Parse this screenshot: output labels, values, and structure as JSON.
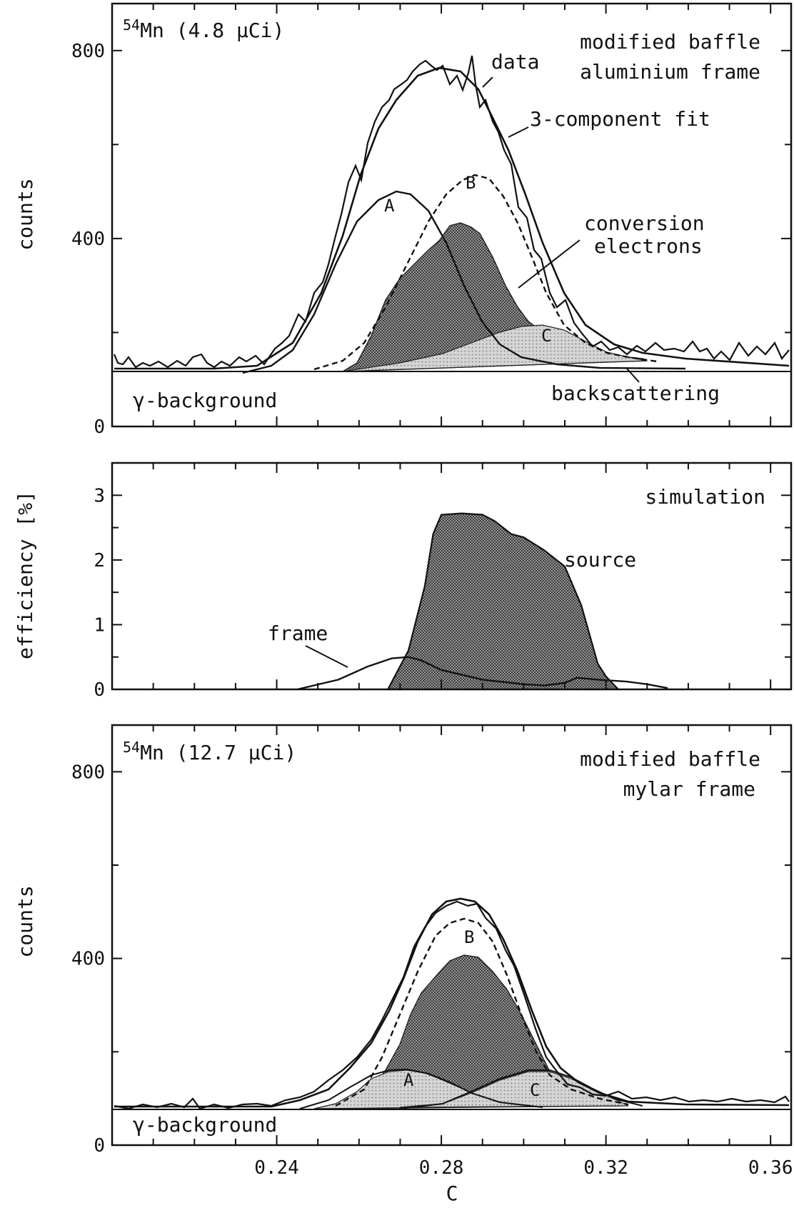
{
  "chart_data": [
    {
      "type": "line",
      "panel": "top",
      "ylabel": "counts",
      "xlim": [
        0.2,
        0.365
      ],
      "ylim": [
        0,
        900
      ],
      "x_ticks": [],
      "y_ticks": [
        0,
        400,
        800
      ],
      "grid": false,
      "title_left": {
        "sup": "54",
        "main": "Mn (4.8 µCi)"
      },
      "annotations": {
        "line1": "modified baffle",
        "line2": "aluminium frame",
        "data": "data",
        "fit": "3-component fit",
        "conversion1": "conversion",
        "conversion2": "electrons",
        "backscattering": "backscattering",
        "background": "γ-background",
        "A": "A",
        "B": "B",
        "C": "C"
      },
      "series": [
        {
          "x": [
            0.2,
            0.21,
            0.22,
            0.23,
            0.24,
            0.245,
            0.25,
            0.255,
            0.26,
            0.265,
            0.27,
            0.275,
            0.28,
            0.285,
            0.29,
            0.295,
            0.3,
            0.305,
            0.31,
            0.315,
            0.32,
            0.325,
            0.33,
            0.34,
            0.35,
            0.365
          ],
          "y": [
            135,
            130,
            133,
            128,
            140,
            160,
            210,
            300,
            420,
            550,
            680,
            760,
            780,
            770,
            740,
            620,
            520,
            400,
            290,
            220,
            185,
            165,
            155,
            150,
            145,
            140
          ]
        },
        {
          "x": [
            0.2,
            0.23,
            0.24,
            0.245,
            0.25,
            0.255,
            0.26,
            0.265,
            0.27,
            0.275,
            0.28,
            0.285,
            0.29,
            0.295,
            0.3,
            0.305,
            0.31,
            0.315,
            0.32,
            0.325,
            0.33,
            0.34,
            0.365
          ],
          "y": [
            130,
            130,
            140,
            165,
            220,
            320,
            450,
            590,
            700,
            760,
            775,
            755,
            700,
            600,
            480,
            370,
            285,
            225,
            190,
            170,
            158,
            148,
            140
          ]
        },
        {
          "x": [
            0.2,
            0.23,
            0.24,
            0.25,
            0.26,
            0.265,
            0.27,
            0.275,
            0.28,
            0.285,
            0.29,
            0.3,
            0.31,
            0.32,
            0.33,
            0.365
          ],
          "y": [
            130,
            130,
            145,
            220,
            390,
            470,
            510,
            490,
            420,
            330,
            250,
            170,
            145,
            135,
            131,
            130
          ]
        },
        {
          "x": [
            0.2,
            0.24,
            0.25,
            0.26,
            0.27,
            0.275,
            0.28,
            0.285,
            0.29,
            0.295,
            0.3,
            0.305,
            0.31,
            0.315,
            0.32,
            0.33,
            0.365
          ],
          "y": [
            130,
            130,
            140,
            180,
            300,
            400,
            480,
            540,
            560,
            545,
            480,
            380,
            280,
            210,
            170,
            140,
            130
          ]
        },
        {
          "x": [
            0.2,
            0.25,
            0.26,
            0.265,
            0.27,
            0.275,
            0.28,
            0.285,
            0.29,
            0.295,
            0.3,
            0.305,
            0.31,
            0.315,
            0.32,
            0.325,
            0.33,
            0.365
          ],
          "y": [
            130,
            130,
            135,
            150,
            200,
            260,
            330,
            390,
            435,
            420,
            360,
            280,
            215,
            180,
            160,
            150,
            142,
            135
          ]
        },
        {
          "x": [
            0.2,
            0.27,
            0.28,
            0.29,
            0.3,
            0.305,
            0.31,
            0.315,
            0.32,
            0.33,
            0.34,
            0.365
          ],
          "y": [
            130,
            132,
            150,
            175,
            200,
            212,
            215,
            205,
            185,
            155,
            140,
            133
          ]
        },
        {
          "x": [
            0.2,
            0.365
          ],
          "y": [
            130,
            130
          ]
        }
      ]
    },
    {
      "type": "area",
      "panel": "middle",
      "ylabel": "efficiency [%]",
      "xlim": [
        0.2,
        0.365
      ],
      "ylim": [
        0,
        3.5
      ],
      "x_ticks": [],
      "y_ticks": [
        0,
        1,
        2,
        3
      ],
      "grid": false,
      "annotations": {
        "simulation": "simulation",
        "source": "source",
        "frame": "frame"
      },
      "series": [
        {
          "x": [
            0.267,
            0.272,
            0.276,
            0.278,
            0.28,
            0.285,
            0.29,
            0.293,
            0.297,
            0.3,
            0.305,
            0.31,
            0.314,
            0.318,
            0.32,
            0.323
          ],
          "y": [
            0.0,
            0.6,
            1.6,
            2.4,
            2.7,
            2.72,
            2.7,
            2.6,
            2.4,
            2.35,
            2.15,
            1.9,
            1.3,
            0.4,
            0.2,
            0.0
          ]
        },
        {
          "x": [
            0.245,
            0.255,
            0.262,
            0.268,
            0.272,
            0.275,
            0.28,
            0.29,
            0.3,
            0.305,
            0.31,
            0.313,
            0.318,
            0.325,
            0.33,
            0.335
          ],
          "y": [
            0.0,
            0.15,
            0.35,
            0.48,
            0.5,
            0.45,
            0.3,
            0.15,
            0.08,
            0.06,
            0.1,
            0.18,
            0.15,
            0.12,
            0.08,
            0.02
          ]
        }
      ]
    },
    {
      "type": "line",
      "panel": "bottom",
      "ylabel": "counts",
      "xlabel": "C",
      "xlim": [
        0.2,
        0.365
      ],
      "ylim": [
        0,
        900
      ],
      "x_ticks": [
        0.24,
        0.28,
        0.32,
        0.36
      ],
      "y_ticks": [
        0,
        400,
        800
      ],
      "grid": false,
      "title_left": {
        "sup": "54",
        "main": "Mn (12.7 µCi)"
      },
      "annotations": {
        "line1": "modified baffle",
        "line2": "mylar frame",
        "background": "γ-background",
        "A": "A",
        "B": "B",
        "C": "C"
      },
      "series": [
        {
          "x": [
            0.2,
            0.22,
            0.24,
            0.25,
            0.255,
            0.26,
            0.265,
            0.27,
            0.275,
            0.28,
            0.285,
            0.29,
            0.295,
            0.3,
            0.305,
            0.31,
            0.315,
            0.32,
            0.33,
            0.34,
            0.365
          ],
          "y": [
            80,
            78,
            82,
            95,
            120,
            170,
            250,
            350,
            440,
            500,
            520,
            525,
            500,
            430,
            330,
            230,
            160,
            120,
            95,
            88,
            85
          ]
        },
        {
          "x": [
            0.2,
            0.24,
            0.25,
            0.255,
            0.26,
            0.265,
            0.27,
            0.275,
            0.28,
            0.285,
            0.29,
            0.295,
            0.3,
            0.305,
            0.31,
            0.315,
            0.32,
            0.33,
            0.365
          ],
          "y": [
            80,
            82,
            95,
            120,
            175,
            260,
            360,
            450,
            510,
            535,
            540,
            515,
            440,
            340,
            240,
            165,
            125,
            95,
            82
          ]
        },
        {
          "x": [
            0.2,
            0.255,
            0.26,
            0.265,
            0.27,
            0.275,
            0.28,
            0.285,
            0.29,
            0.295,
            0.3,
            0.305,
            0.31,
            0.32,
            0.365
          ],
          "y": [
            80,
            80,
            120,
            200,
            300,
            380,
            440,
            470,
            470,
            430,
            350,
            250,
            170,
            100,
            80
          ]
        },
        {
          "x": [
            0.2,
            0.255,
            0.26,
            0.265,
            0.27,
            0.275,
            0.28,
            0.285,
            0.29,
            0.295,
            0.3,
            0.305,
            0.31,
            0.32,
            0.365
          ],
          "y": [
            80,
            80,
            110,
            170,
            250,
            320,
            375,
            400,
            400,
            375,
            310,
            230,
            160,
            95,
            80
          ]
        },
        {
          "x": [
            0.2,
            0.25,
            0.26,
            0.265,
            0.27,
            0.275,
            0.28,
            0.285,
            0.29,
            0.3,
            0.31,
            0.365
          ],
          "y": [
            80,
            85,
            120,
            145,
            155,
            157,
            150,
            135,
            118,
            95,
            85,
            80
          ]
        },
        {
          "x": [
            0.2,
            0.28,
            0.29,
            0.3,
            0.305,
            0.31,
            0.315,
            0.32,
            0.33,
            0.365
          ],
          "y": [
            80,
            82,
            100,
            125,
            135,
            135,
            128,
            115,
            95,
            82
          ]
        },
        {
          "x": [
            0.2,
            0.365
          ],
          "y": [
            80,
            80
          ]
        }
      ]
    }
  ]
}
